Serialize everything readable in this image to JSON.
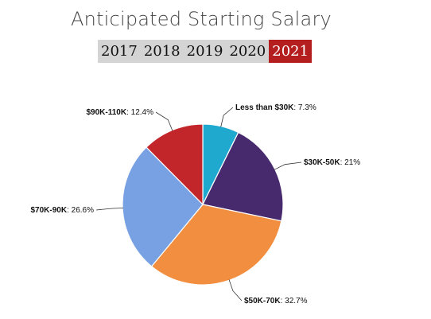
{
  "page": {
    "title": "Anticipated Starting Salary"
  },
  "year_tabs": [
    {
      "label": "2017",
      "active": false
    },
    {
      "label": "2018",
      "active": false
    },
    {
      "label": "2019",
      "active": false
    },
    {
      "label": "2020",
      "active": false
    },
    {
      "label": "2021",
      "active": true
    }
  ],
  "colors": {
    "tab_active": "#b51e1e",
    "tab_inactive": "#d4d4d4"
  },
  "chart_data": {
    "type": "pie",
    "title": "",
    "slices": [
      {
        "label": "Less than $30K",
        "value": 7.3,
        "display": "7.3%",
        "color": "#1fa9cf"
      },
      {
        "label": "$30K-50K",
        "value": 21,
        "display": "21%",
        "color": "#472a6e"
      },
      {
        "label": "$50K-70K",
        "value": 32.7,
        "display": "32.7%",
        "color": "#f28e3f"
      },
      {
        "label": "$70K-90K",
        "value": 26.6,
        "display": "26.6%",
        "color": "#78a1e3"
      },
      {
        "label": "$90K-110K",
        "value": 12.4,
        "display": "12.4%",
        "color": "#c3262a"
      }
    ],
    "start_angle_deg": 0,
    "direction": "clockwise",
    "legend": "none",
    "labels": "outside-with-leader-lines"
  }
}
